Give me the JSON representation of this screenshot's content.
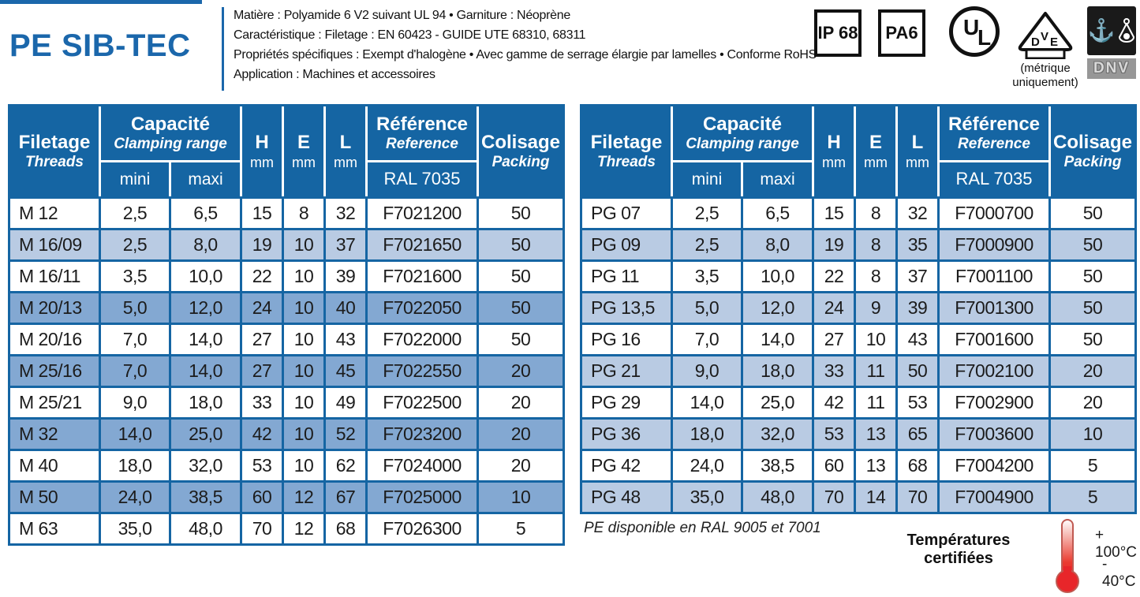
{
  "page": {
    "title": "PE SIB-TEC",
    "description_lines": [
      "Matière : Polyamide 6 V2 suivant UL 94 • Garniture : Néoprène",
      "Caractéristique : Filetage : EN 60423 - GUIDE UTE 68310, 68311",
      "Propriétés spécifiques : Exempt d'halogène • Avec gamme de serrage élargie par lamelles • Conforme RoHS",
      "Application : Machines et accessoires"
    ]
  },
  "badges": {
    "ip68": "IP 68",
    "pa6": "PA6",
    "ul_u": "U",
    "ul_l": "L",
    "vde_d": "D",
    "vde_v": "V",
    "vde_e": "E",
    "vde_caption_line1": "(métrique",
    "vde_caption_line2": "uniquement)",
    "dnv_label": "DNV"
  },
  "table_header": {
    "filetage": "Filetage",
    "threads": "Threads",
    "capacite": "Capacité",
    "clamping_range": "Clamping range",
    "mini": "mini",
    "maxi": "maxi",
    "h": "H",
    "e": "E",
    "l": "L",
    "mm": "mm",
    "reference_fr": "Référence",
    "reference_en": "Reference",
    "ral": "RAL 7035",
    "colisage": "Colisage",
    "packing": "Packing"
  },
  "metric_table": {
    "rows": [
      {
        "thread": "M 12",
        "mini": "2,5",
        "maxi": "6,5",
        "h": "15",
        "e": "8",
        "l": "32",
        "ref": "F7021200",
        "packing": "50",
        "shade": "white"
      },
      {
        "thread": "M 16/09",
        "mini": "2,5",
        "maxi": "8,0",
        "h": "19",
        "e": "10",
        "l": "37",
        "ref": "F7021650",
        "packing": "50",
        "shade": "light"
      },
      {
        "thread": "M 16/11",
        "mini": "3,5",
        "maxi": "10,0",
        "h": "22",
        "e": "10",
        "l": "39",
        "ref": "F7021600",
        "packing": "50",
        "shade": "white"
      },
      {
        "thread": "M 20/13",
        "mini": "5,0",
        "maxi": "12,0",
        "h": "24",
        "e": "10",
        "l": "40",
        "ref": "F7022050",
        "packing": "50",
        "shade": "dark"
      },
      {
        "thread": "M 20/16",
        "mini": "7,0",
        "maxi": "14,0",
        "h": "27",
        "e": "10",
        "l": "43",
        "ref": "F7022000",
        "packing": "50",
        "shade": "white"
      },
      {
        "thread": "M 25/16",
        "mini": "7,0",
        "maxi": "14,0",
        "h": "27",
        "e": "10",
        "l": "45",
        "ref": "F7022550",
        "packing": "20",
        "shade": "dark"
      },
      {
        "thread": "M 25/21",
        "mini": "9,0",
        "maxi": "18,0",
        "h": "33",
        "e": "10",
        "l": "49",
        "ref": "F7022500",
        "packing": "20",
        "shade": "white"
      },
      {
        "thread": "M 32",
        "mini": "14,0",
        "maxi": "25,0",
        "h": "42",
        "e": "10",
        "l": "52",
        "ref": "F7023200",
        "packing": "20",
        "shade": "dark"
      },
      {
        "thread": "M 40",
        "mini": "18,0",
        "maxi": "32,0",
        "h": "53",
        "e": "10",
        "l": "62",
        "ref": "F7024000",
        "packing": "20",
        "shade": "white"
      },
      {
        "thread": "M 50",
        "mini": "24,0",
        "maxi": "38,5",
        "h": "60",
        "e": "12",
        "l": "67",
        "ref": "F7025000",
        "packing": "10",
        "shade": "dark"
      },
      {
        "thread": "M 63",
        "mini": "35,0",
        "maxi": "48,0",
        "h": "70",
        "e": "12",
        "l": "68",
        "ref": "F7026300",
        "packing": "5",
        "shade": "white"
      }
    ]
  },
  "pg_table": {
    "rows": [
      {
        "thread": "PG 07",
        "mini": "2,5",
        "maxi": "6,5",
        "h": "15",
        "e": "8",
        "l": "32",
        "ref": "F7000700",
        "packing": "50",
        "shade": "white"
      },
      {
        "thread": "PG 09",
        "mini": "2,5",
        "maxi": "8,0",
        "h": "19",
        "e": "8",
        "l": "35",
        "ref": "F7000900",
        "packing": "50",
        "shade": "light"
      },
      {
        "thread": "PG 11",
        "mini": "3,5",
        "maxi": "10,0",
        "h": "22",
        "e": "8",
        "l": "37",
        "ref": "F7001100",
        "packing": "50",
        "shade": "white"
      },
      {
        "thread": "PG 13,5",
        "mini": "5,0",
        "maxi": "12,0",
        "h": "24",
        "e": "9",
        "l": "39",
        "ref": "F7001300",
        "packing": "50",
        "shade": "light"
      },
      {
        "thread": "PG 16",
        "mini": "7,0",
        "maxi": "14,0",
        "h": "27",
        "e": "10",
        "l": "43",
        "ref": "F7001600",
        "packing": "50",
        "shade": "white"
      },
      {
        "thread": "PG 21",
        "mini": "9,0",
        "maxi": "18,0",
        "h": "33",
        "e": "11",
        "l": "50",
        "ref": "F7002100",
        "packing": "20",
        "shade": "light"
      },
      {
        "thread": "PG 29",
        "mini": "14,0",
        "maxi": "25,0",
        "h": "42",
        "e": "11",
        "l": "53",
        "ref": "F7002900",
        "packing": "20",
        "shade": "white"
      },
      {
        "thread": "PG 36",
        "mini": "18,0",
        "maxi": "32,0",
        "h": "53",
        "e": "13",
        "l": "65",
        "ref": "F7003600",
        "packing": "10",
        "shade": "light"
      },
      {
        "thread": "PG 42",
        "mini": "24,0",
        "maxi": "38,5",
        "h": "60",
        "e": "13",
        "l": "68",
        "ref": "F7004200",
        "packing": "5",
        "shade": "white"
      },
      {
        "thread": "PG 48",
        "mini": "35,0",
        "maxi": "48,0",
        "h": "70",
        "e": "14",
        "l": "70",
        "ref": "F7004900",
        "packing": "5",
        "shade": "light"
      }
    ]
  },
  "footer": {
    "ral_note": "PE disponible en RAL 9005 et 7001",
    "temp_line1": "Températures",
    "temp_line2": "certifiées",
    "temp_max": "+ 100°C",
    "temp_min": "- 40°C"
  },
  "colors": {
    "table_blue": "#1565a3",
    "row_light": "#b9cbe3",
    "row_dark": "#83a8d2",
    "title_blue": "#1b67ab",
    "thermometer_red": "#e8262a"
  }
}
